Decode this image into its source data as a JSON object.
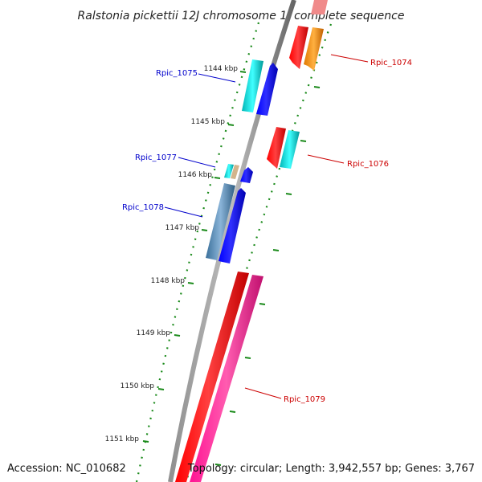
{
  "title": "Ralstonia pickettii 12J chromosome 1, complete sequence",
  "footer": {
    "accession": "Accession: NC_010682",
    "summary": "Topology: circular; Length: 3,942,557 bp; Genes: 3,767"
  },
  "kbp_labels": [
    "1144 kbp",
    "1145 kbp",
    "1146 kbp",
    "1147 kbp",
    "1148 kbp",
    "1149 kbp",
    "1150 kbp",
    "1151 kbp"
  ],
  "genes": [
    {
      "id": "Rpic_1074",
      "strand": "forward",
      "color": "#cc0000"
    },
    {
      "id": "Rpic_1075",
      "strand": "reverse",
      "color": "#0000cc"
    },
    {
      "id": "Rpic_1076",
      "strand": "forward",
      "color": "#cc0000"
    },
    {
      "id": "Rpic_1077",
      "strand": "reverse",
      "color": "#0000cc"
    },
    {
      "id": "Rpic_1078",
      "strand": "reverse",
      "color": "#0000cc"
    },
    {
      "id": "Rpic_1079",
      "strand": "forward",
      "color": "#cc0000"
    }
  ],
  "colors": {
    "backbone": "#808080",
    "tick": "#1a8a1a",
    "forward_cds": "#ff0000",
    "reverse_cds": "#0000ff",
    "forward_feature": "#ff1493",
    "orange_feature": "#ff8c00",
    "cyan_feature": "#00cccc",
    "steel_feature": "#4682b4",
    "tan_feature": "#d2b48c"
  }
}
